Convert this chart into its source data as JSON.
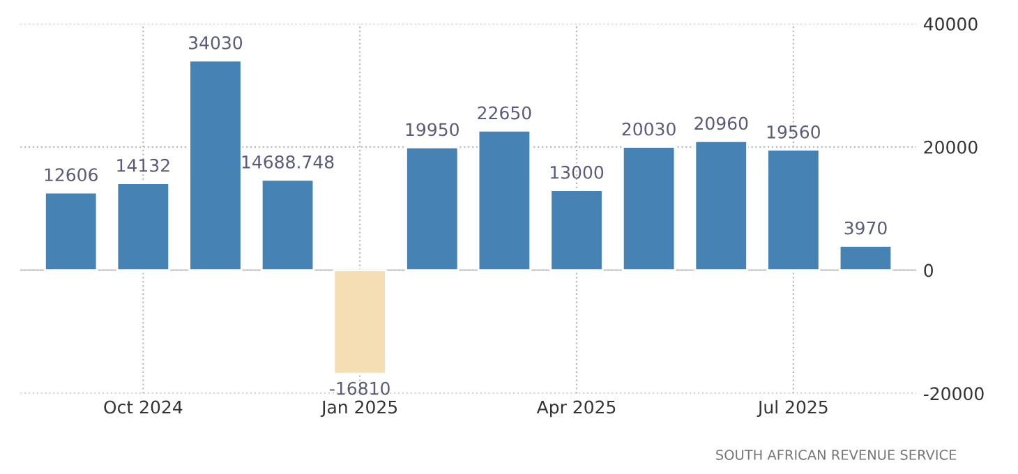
{
  "chart_data": {
    "type": "bar",
    "categories": [
      null,
      "Oct 2024",
      null,
      null,
      "Jan 2025",
      null,
      null,
      "Apr 2025",
      null,
      null,
      "Jul 2025",
      null
    ],
    "values": [
      12606,
      14132,
      34030,
      14688.748,
      -16810,
      19950,
      22650,
      13000,
      20030,
      20960,
      19560,
      3970
    ],
    "colors": [
      "#4682b4",
      "#4682b4",
      "#4682b4",
      "#4682b4",
      "#f5deb3",
      "#4682b4",
      "#4682b4",
      "#4682b4",
      "#4682b4",
      "#4682b4",
      "#4682b4",
      "#4682b4"
    ],
    "ylim": [
      -20000,
      40000
    ],
    "yticks": [
      -20000,
      0,
      20000,
      40000
    ],
    "grid": true,
    "data_labels": true,
    "annotations": [
      "SOUTH AFRICAN REVENUE SERVICE"
    ]
  }
}
